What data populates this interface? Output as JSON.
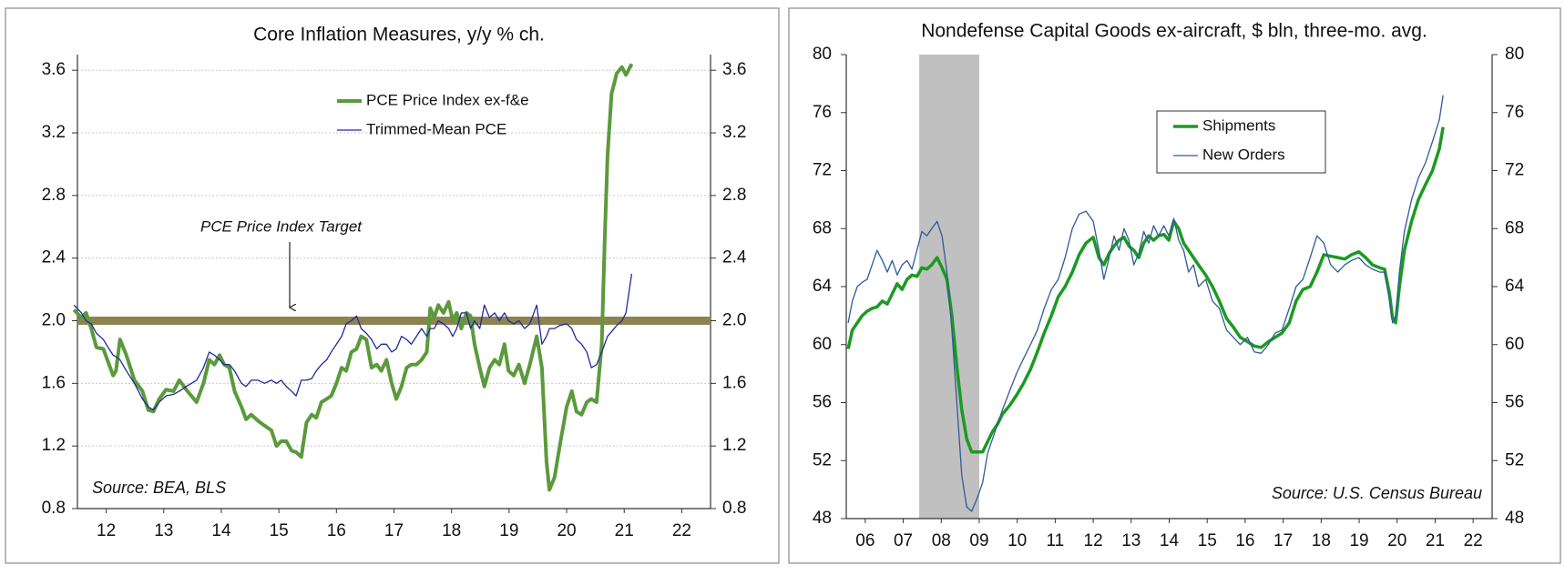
{
  "chart_data": [
    {
      "type": "line",
      "title": "Core Inflation Measures, y/y % ch.",
      "source": "Source: BEA, BLS",
      "xlim": [
        2012,
        2023
      ],
      "xticks": [
        {
          "value": 2012.5,
          "label": "12"
        },
        {
          "value": 2013.5,
          "label": "13"
        },
        {
          "value": 2014.5,
          "label": "14"
        },
        {
          "value": 2015.5,
          "label": "15"
        },
        {
          "value": 2016.5,
          "label": "16"
        },
        {
          "value": 2017.5,
          "label": "17"
        },
        {
          "value": 2018.5,
          "label": "18"
        },
        {
          "value": 2019.5,
          "label": "19"
        },
        {
          "value": 2020.5,
          "label": "20"
        },
        {
          "value": 2021.5,
          "label": "21"
        },
        {
          "value": 2022.5,
          "label": "22"
        }
      ],
      "ylim": [
        0.8,
        3.7
      ],
      "yticks": [
        0.8,
        1.2,
        1.6,
        {
          "value": 2,
          "label": "2.0"
        },
        2.4,
        2.8,
        3.2,
        3.6
      ],
      "y2lim": [
        0.8,
        3.7
      ],
      "y2ticks": [
        0.8,
        1.2,
        1.6,
        {
          "value": 2,
          "label": "2.0"
        },
        2.4,
        2.8,
        3.2,
        3.6
      ],
      "grid": true,
      "legend": "upper center",
      "reference_line": {
        "value": 2,
        "label": "PCE Price Index Target",
        "color": "#8c8450"
      },
      "x": [
        2011.94,
        2012.07,
        2012.15,
        2012.24,
        2012.33,
        2012.45,
        2012.55,
        2012.62,
        2012.67,
        2012.74,
        2012.85,
        2012.99,
        2013.13,
        2013.23,
        2013.32,
        2013.42,
        2013.54,
        2013.67,
        2013.77,
        2013.89,
        2014.07,
        2014.19,
        2014.29,
        2014.38,
        2014.47,
        2014.55,
        2014.64,
        2014.73,
        2014.85,
        2014.93,
        2015.02,
        2015.14,
        2015.25,
        2015.37,
        2015.46,
        2015.54,
        2015.63,
        2015.72,
        2015.8,
        2015.89,
        2015.98,
        2016.07,
        2016.15,
        2016.24,
        2016.33,
        2016.41,
        2016.5,
        2016.59,
        2016.67,
        2016.76,
        2016.85,
        2016.93,
        2017.02,
        2017.11,
        2017.2,
        2017.28,
        2017.37,
        2017.46,
        2017.54,
        2017.63,
        2017.72,
        2017.8,
        2017.89,
        2017.98,
        2018.07,
        2018.13,
        2018.2,
        2018.27,
        2018.36,
        2018.45,
        2018.52,
        2018.59,
        2018.67,
        2018.76,
        2018.83,
        2018.9,
        2018.99,
        2019.07,
        2019.16,
        2019.25,
        2019.33,
        2019.42,
        2019.49,
        2019.58,
        2019.67,
        2019.77,
        2019.86,
        2019.98,
        2020.07,
        2020.15,
        2020.2,
        2020.29,
        2020.38,
        2020.5,
        2020.59,
        2020.67,
        2020.76,
        2020.85,
        2020.93,
        2021.02,
        2021.11,
        2021.16,
        2021.21,
        2021.28,
        2021.37,
        2021.46,
        2021.53,
        2021.63
      ],
      "series": [
        {
          "name": "PCE Price Index ex-f&e",
          "color": "#5b9a3c",
          "width": 4,
          "values": [
            2.07,
            2.02,
            2.05,
            1.95,
            1.83,
            1.82,
            1.72,
            1.65,
            1.68,
            1.88,
            1.78,
            1.62,
            1.55,
            1.43,
            1.42,
            1.5,
            1.56,
            1.55,
            1.62,
            1.56,
            1.48,
            1.6,
            1.75,
            1.72,
            1.78,
            1.72,
            1.7,
            1.55,
            1.45,
            1.37,
            1.4,
            1.36,
            1.33,
            1.3,
            1.2,
            1.23,
            1.23,
            1.17,
            1.16,
            1.13,
            1.35,
            1.4,
            1.38,
            1.48,
            1.5,
            1.52,
            1.6,
            1.7,
            1.68,
            1.8,
            1.82,
            1.9,
            1.88,
            1.7,
            1.72,
            1.68,
            1.75,
            1.6,
            1.5,
            1.58,
            1.7,
            1.72,
            1.72,
            1.75,
            1.8,
            2.08,
            2.02,
            2.1,
            2.05,
            2.12,
            2.0,
            2.05,
            1.95,
            2.05,
            2.03,
            1.85,
            1.7,
            1.58,
            1.7,
            1.75,
            1.72,
            1.85,
            1.68,
            1.65,
            1.72,
            1.6,
            1.72,
            1.9,
            1.7,
            1.1,
            0.92,
            1.0,
            1.2,
            1.45,
            1.55,
            1.42,
            1.4,
            1.48,
            1.5,
            1.48,
            1.85,
            2.5,
            3.05,
            3.45,
            3.58,
            3.62,
            3.57,
            3.64
          ]
        },
        {
          "name": "Trimmed-Mean PCE",
          "color": "#1f2a9a",
          "width": 1.3,
          "values": [
            2.1,
            2.05,
            2.0,
            1.98,
            1.92,
            1.88,
            1.82,
            1.78,
            1.77,
            1.75,
            1.68,
            1.6,
            1.5,
            1.45,
            1.43,
            1.48,
            1.52,
            1.53,
            1.55,
            1.58,
            1.62,
            1.7,
            1.8,
            1.78,
            1.75,
            1.72,
            1.72,
            1.68,
            1.6,
            1.58,
            1.62,
            1.62,
            1.6,
            1.62,
            1.6,
            1.62,
            1.58,
            1.55,
            1.52,
            1.62,
            1.62,
            1.63,
            1.68,
            1.72,
            1.75,
            1.8,
            1.85,
            1.9,
            1.98,
            2.0,
            2.03,
            1.95,
            1.92,
            1.88,
            1.82,
            1.85,
            1.85,
            1.8,
            1.82,
            1.9,
            1.88,
            1.85,
            1.9,
            1.95,
            1.9,
            1.95,
            1.95,
            2.0,
            1.98,
            1.95,
            1.9,
            1.95,
            2.05,
            2.05,
            1.95,
            2.0,
            1.95,
            2.1,
            2.02,
            2.05,
            2.0,
            2.05,
            2.0,
            1.98,
            2.0,
            1.95,
            1.98,
            2.1,
            1.85,
            1.9,
            1.95,
            1.95,
            1.97,
            1.98,
            1.95,
            1.88,
            1.85,
            1.8,
            1.7,
            1.72,
            1.8,
            1.85,
            1.9,
            1.93,
            1.97,
            2.0,
            2.05,
            2.3
          ]
        }
      ]
    },
    {
      "type": "line",
      "title": "Nondefense Capital Goods ex-aircraft, $ bln, three-mo. avg.",
      "source": "Source: U.S. Census Bureau",
      "xlim": [
        2006,
        2023
      ],
      "xticks": [
        {
          "value": 2006.5,
          "label": "06"
        },
        {
          "value": 2007.5,
          "label": "07"
        },
        {
          "value": 2008.5,
          "label": "08"
        },
        {
          "value": 2009.5,
          "label": "09"
        },
        {
          "value": 2010.5,
          "label": "10"
        },
        {
          "value": 2011.5,
          "label": "11"
        },
        {
          "value": 2012.5,
          "label": "12"
        },
        {
          "value": 2013.5,
          "label": "13"
        },
        {
          "value": 2014.5,
          "label": "14"
        },
        {
          "value": 2015.5,
          "label": "15"
        },
        {
          "value": 2016.5,
          "label": "16"
        },
        {
          "value": 2017.5,
          "label": "17"
        },
        {
          "value": 2018.5,
          "label": "18"
        },
        {
          "value": 2019.5,
          "label": "19"
        },
        {
          "value": 2020.5,
          "label": "20"
        },
        {
          "value": 2021.5,
          "label": "21"
        },
        {
          "value": 2022.5,
          "label": "22"
        }
      ],
      "ylim": [
        48,
        80
      ],
      "yticks": [
        48,
        52,
        56,
        60,
        64,
        68,
        72,
        76,
        80
      ],
      "y2lim": [
        48,
        80
      ],
      "y2ticks": [
        48,
        52,
        56,
        60,
        64,
        68,
        72,
        76,
        80
      ],
      "grid": false,
      "legend": "upper center",
      "shaded_regions": [
        [
          2007.92,
          2009.5
        ]
      ],
      "shade_color": "#c0c0c0",
      "x": [
        2006.05,
        2006.16,
        2006.29,
        2006.42,
        2006.55,
        2006.68,
        2006.81,
        2006.95,
        2007.08,
        2007.21,
        2007.34,
        2007.47,
        2007.6,
        2007.73,
        2007.86,
        2007.99,
        2008.12,
        2008.25,
        2008.39,
        2008.52,
        2008.65,
        2008.78,
        2008.91,
        2009.04,
        2009.17,
        2009.3,
        2009.46,
        2009.59,
        2009.72,
        2009.85,
        2009.98,
        2010.11,
        2010.3,
        2010.48,
        2010.66,
        2010.85,
        2011.03,
        2011.21,
        2011.4,
        2011.58,
        2011.76,
        2011.95,
        2012.13,
        2012.31,
        2012.5,
        2012.65,
        2012.78,
        2012.92,
        2013.05,
        2013.18,
        2013.31,
        2013.44,
        2013.57,
        2013.7,
        2013.83,
        2013.96,
        2014.09,
        2014.22,
        2014.36,
        2014.49,
        2014.62,
        2014.75,
        2014.88,
        2015.01,
        2015.14,
        2015.27,
        2015.46,
        2015.64,
        2015.82,
        2016.01,
        2016.19,
        2016.37,
        2016.56,
        2016.74,
        2016.92,
        2017.11,
        2017.29,
        2017.47,
        2017.66,
        2017.84,
        2018.02,
        2018.21,
        2018.39,
        2018.57,
        2018.75,
        2018.94,
        2019.12,
        2019.3,
        2019.49,
        2019.67,
        2019.85,
        2020.04,
        2020.17,
        2020.3,
        2020.38,
        2020.46,
        2020.56,
        2020.69,
        2020.88,
        2021.06,
        2021.24,
        2021.43,
        2021.61,
        2021.71
      ],
      "series": [
        {
          "name": "Shipments",
          "color": "#1b9a22",
          "width": 3.5,
          "values": [
            59.7,
            61.0,
            61.5,
            62.0,
            62.3,
            62.5,
            62.6,
            63.0,
            62.8,
            63.5,
            64.2,
            63.8,
            64.5,
            64.8,
            64.7,
            65.3,
            65.2,
            65.5,
            66.0,
            65.3,
            64.5,
            62.0,
            58.5,
            55.5,
            53.5,
            52.6,
            52.6,
            52.6,
            53.3,
            54.0,
            54.5,
            55.2,
            55.8,
            56.5,
            57.3,
            58.3,
            59.5,
            60.8,
            62.0,
            63.3,
            64.0,
            65.0,
            66.2,
            67.0,
            67.4,
            66.0,
            65.5,
            66.3,
            66.8,
            67.2,
            67.4,
            66.8,
            66.5,
            66.0,
            67.0,
            67.5,
            67.2,
            67.5,
            67.6,
            67.2,
            68.5,
            68.0,
            67.0,
            66.5,
            66.0,
            65.5,
            64.8,
            64.0,
            63.0,
            61.8,
            61.2,
            60.5,
            60.2,
            59.9,
            59.8,
            60.2,
            60.5,
            60.8,
            61.5,
            63.0,
            63.8,
            64.0,
            65.0,
            66.2,
            66.1,
            66.0,
            65.9,
            66.2,
            66.4,
            66.0,
            65.5,
            65.3,
            65.2,
            63.5,
            61.8,
            61.5,
            64.0,
            66.5,
            68.5,
            70.0,
            71.0,
            72.0,
            73.5,
            75.0
          ]
        },
        {
          "name": "New Orders",
          "color": "#2f5a9a",
          "width": 1.3,
          "values": [
            61.5,
            63.0,
            64.0,
            64.3,
            64.5,
            65.5,
            66.5,
            65.8,
            65.0,
            65.8,
            64.8,
            65.5,
            65.8,
            65.2,
            66.5,
            67.8,
            67.5,
            68.0,
            68.5,
            67.5,
            65.0,
            61.0,
            56.0,
            51.0,
            48.8,
            48.5,
            49.5,
            50.5,
            52.5,
            53.5,
            54.5,
            55.5,
            56.8,
            58.0,
            59.0,
            60.0,
            61.0,
            62.5,
            63.8,
            64.5,
            66.0,
            68.0,
            69.0,
            69.2,
            68.5,
            66.5,
            64.5,
            66.0,
            67.5,
            66.5,
            68.0,
            67.2,
            65.5,
            66.3,
            67.8,
            67.0,
            68.2,
            67.5,
            68.2,
            67.5,
            68.7,
            67.2,
            66.5,
            65.0,
            65.5,
            64.0,
            64.5,
            63.0,
            62.5,
            61.0,
            60.5,
            60.0,
            60.5,
            59.5,
            59.4,
            60.0,
            60.8,
            61.0,
            62.5,
            64.0,
            64.5,
            66.0,
            67.5,
            67.0,
            65.5,
            65.0,
            65.5,
            65.8,
            66.0,
            65.5,
            65.2,
            65.0,
            65.0,
            63.0,
            61.5,
            62.0,
            65.0,
            67.8,
            70.0,
            71.5,
            72.5,
            74.0,
            75.5,
            77.2
          ]
        }
      ]
    }
  ]
}
